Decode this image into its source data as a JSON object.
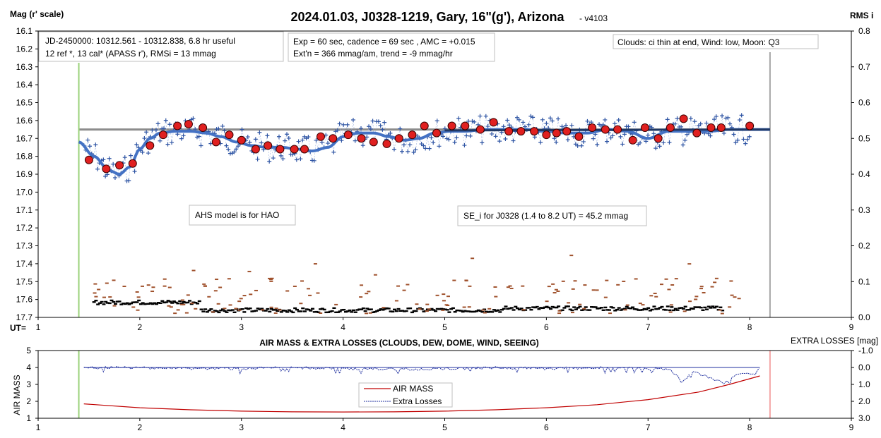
{
  "title": "2024.01.03, J0328-1219, Gary, 16\"(g'), Arizona",
  "version": "- v4103",
  "colors": {
    "frame": "#000000",
    "grid": "#d9d9d9",
    "model": "#4472c4",
    "raw": "#2f55a4",
    "median_dots": "#e02020",
    "reference_line": "#8c8c8c",
    "rms_points": "#000000",
    "rms_orange": "#a0522d",
    "start_marker": "#9bd17a",
    "end_marker": "#a6a6a6",
    "airmass": "#c00000",
    "extra_losses": "#1f2f9f",
    "end_marker_lower": "#f4a6a6"
  },
  "upper": {
    "ylabel_left": "Mag (r' scale)",
    "ylabel_right": "RMS i",
    "xlabel": "UT=",
    "yticks": [
      "16.1",
      "16.2",
      "16.3",
      "16.4",
      "16.5",
      "16.6",
      "16.7",
      "16.8",
      "16.9",
      "17.0",
      "17.1",
      "17.2",
      "17.3",
      "17.4",
      "17.5",
      "17.6",
      "17.7"
    ],
    "yticks_right": [
      "0.8",
      "0.7",
      "0.6",
      "0.5",
      "0.4",
      "0.3",
      "0.2",
      "0.1",
      "0.0"
    ],
    "xticks": [
      "1",
      "2",
      "3",
      "4",
      "5",
      "6",
      "7",
      "8",
      "9"
    ],
    "box1_line1": "JD-2450000: 10312.561 - 10312.838, 6.8 hr useful",
    "box1_line2": "12 ref *, 13 cal*  (APASS r'), RMSi = 13 mmag",
    "box2_line1": "Exp = 60 sec, cadence = 69 sec , AMC = +0.015",
    "box2_line2": "Ext'n = 366 mmag/am, trend = -9 mmag/hr",
    "box3": "Clouds: ci thin at end, Wind:  low,  Moon:  Q3",
    "box4": "AHS model is for HAO",
    "box5": "SE_i for J0328 (1.4 to 8.2 UT) = 45.2 mmag"
  },
  "lower": {
    "title": "AIR MASS & EXTRA LOSSES (CLOUDS, DEW, DOME, WIND, SEEING)",
    "ylabel_left": "AIR MASS",
    "ylabel_right": "EXTRA LOSSES [mag]",
    "yticks": [
      "5",
      "4",
      "3",
      "2",
      "1"
    ],
    "yticks_right": [
      "-1.0",
      "0.0",
      "1.0",
      "2.0",
      "3.0"
    ],
    "xticks": [
      "1",
      "2",
      "3",
      "4",
      "5",
      "6",
      "7",
      "8",
      "9"
    ],
    "legend_airmass": "AIR MASS",
    "legend_losses": "Extra Losses"
  },
  "chart_data": [
    {
      "type": "scatter",
      "title": "2024.01.03, J0328-1219, Gary, 16\"(g'), Arizona",
      "xlabel": "UT=",
      "ylabel": "Mag (r' scale)",
      "y2label": "RMS i",
      "xlim": [
        1,
        9
      ],
      "ylim": [
        17.7,
        16.1
      ],
      "y2lim": [
        0.0,
        0.8
      ],
      "reference_level": 16.65,
      "start_ut": 1.4,
      "end_ut": 8.2,
      "series": [
        {
          "kind": "model",
          "x": [
            1.4,
            1.55,
            1.7,
            1.8,
            1.9,
            2.0,
            2.1,
            2.2,
            2.35,
            2.5,
            2.65,
            2.8,
            2.95,
            3.1,
            3.25,
            3.4,
            3.55,
            3.7,
            3.85,
            4.0,
            4.15,
            4.3,
            4.45,
            4.6,
            4.75,
            4.9,
            5.05,
            5.2,
            5.4,
            5.6,
            5.8,
            6.0,
            6.2,
            6.4,
            6.6,
            6.8,
            7.0,
            7.2,
            7.4,
            7.6,
            7.8,
            8.0,
            8.2
          ],
          "y": [
            16.72,
            16.8,
            16.88,
            16.9,
            16.86,
            16.76,
            16.7,
            16.67,
            16.66,
            16.66,
            16.67,
            16.69,
            16.72,
            16.74,
            16.75,
            16.75,
            16.76,
            16.77,
            16.75,
            16.69,
            16.67,
            16.67,
            16.69,
            16.71,
            16.7,
            16.67,
            16.66,
            16.66,
            16.65,
            16.65,
            16.65,
            16.66,
            16.67,
            16.67,
            16.65,
            16.66,
            16.7,
            16.66,
            16.66,
            16.66,
            16.65,
            16.65,
            16.65
          ]
        },
        {
          "kind": "medians",
          "x": [
            1.5,
            1.67,
            1.8,
            1.93,
            2.1,
            2.23,
            2.37,
            2.48,
            2.62,
            2.75,
            2.88,
            3.0,
            3.14,
            3.26,
            3.38,
            3.52,
            3.62,
            3.78,
            3.9,
            4.05,
            4.18,
            4.3,
            4.43,
            4.55,
            4.68,
            4.8,
            4.92,
            5.07,
            5.2,
            5.35,
            5.48,
            5.63,
            5.75,
            5.88,
            6.0,
            6.1,
            6.2,
            6.32,
            6.45,
            6.58,
            6.7,
            6.85,
            6.97,
            7.1,
            7.22,
            7.35,
            7.48,
            7.62,
            7.72,
            8.0
          ],
          "y": [
            16.82,
            16.87,
            16.85,
            16.84,
            16.74,
            16.68,
            16.63,
            16.62,
            16.64,
            16.72,
            16.68,
            16.71,
            16.76,
            16.74,
            16.76,
            16.76,
            16.76,
            16.69,
            16.7,
            16.68,
            16.7,
            16.72,
            16.73,
            16.7,
            16.68,
            16.63,
            16.67,
            16.63,
            16.63,
            16.65,
            16.61,
            16.66,
            16.66,
            16.66,
            16.68,
            16.67,
            16.66,
            16.69,
            16.64,
            16.65,
            16.65,
            16.71,
            16.64,
            16.7,
            16.64,
            16.59,
            16.67,
            16.64,
            16.64,
            16.63
          ]
        }
      ]
    },
    {
      "type": "line",
      "title": "AIR MASS & EXTRA LOSSES (CLOUDS, DEW, DOME, WIND, SEEING)",
      "xlabel": "",
      "ylabel": "AIR MASS",
      "y2label": "EXTRA LOSSES [mag]",
      "xlim": [
        1,
        9
      ],
      "ylim": [
        1,
        5
      ],
      "y2lim": [
        3.0,
        -1.0
      ],
      "series": [
        {
          "name": "AIR MASS",
          "x": [
            1.45,
            2.0,
            2.5,
            3.0,
            3.5,
            4.0,
            4.5,
            5.0,
            5.5,
            6.0,
            6.5,
            7.0,
            7.5,
            7.8,
            8.1
          ],
          "y": [
            1.85,
            1.62,
            1.5,
            1.42,
            1.38,
            1.37,
            1.38,
            1.42,
            1.5,
            1.62,
            1.8,
            2.1,
            2.55,
            3.0,
            3.5
          ]
        },
        {
          "name": "Extra Losses",
          "x": [
            1.45,
            2.0,
            2.5,
            3.0,
            3.5,
            4.0,
            4.5,
            5.0,
            5.5,
            6.0,
            6.5,
            7.0,
            7.2,
            7.35,
            7.45,
            7.6,
            7.75,
            7.9,
            8.05,
            8.1
          ],
          "y": [
            0.0,
            0.0,
            0.05,
            0.05,
            0.0,
            0.05,
            0.1,
            0.05,
            0.0,
            0.05,
            0.0,
            0.05,
            0.1,
            0.8,
            0.2,
            0.6,
            0.9,
            0.3,
            0.4,
            0.0
          ]
        }
      ]
    }
  ]
}
